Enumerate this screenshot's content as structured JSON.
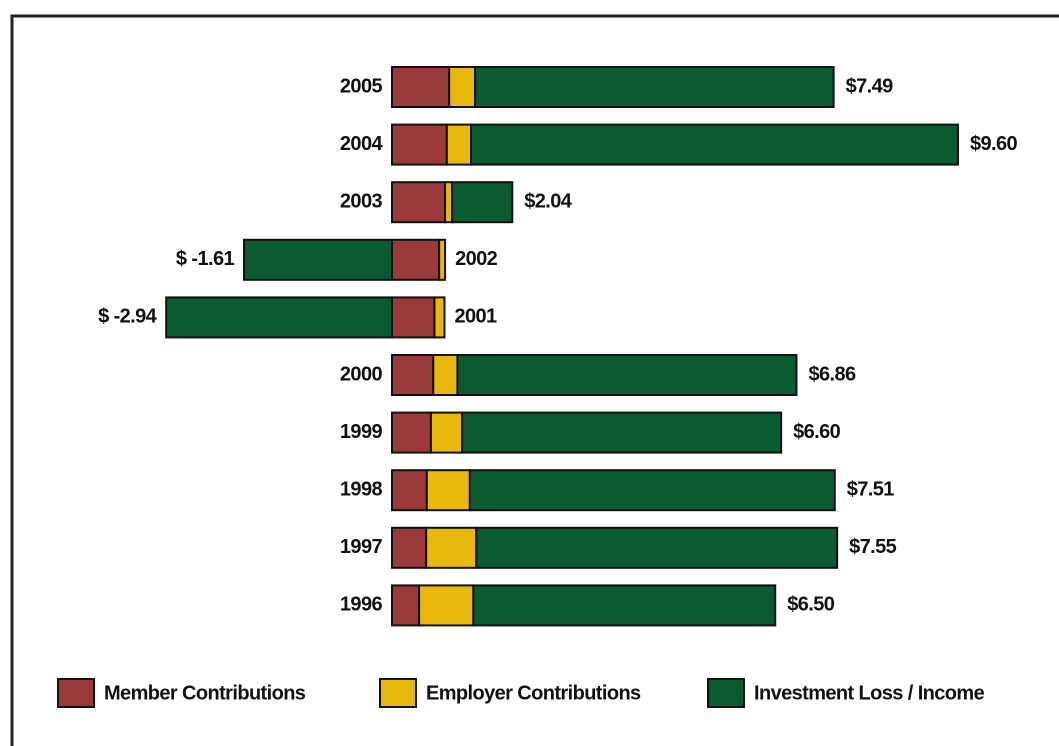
{
  "chart_data": {
    "type": "stacked-bar-horizontal",
    "categories": [
      "2005",
      "2004",
      "2003",
      "2002",
      "2001",
      "2000",
      "1999",
      "1998",
      "1997",
      "1996"
    ],
    "series": [
      {
        "name": "Member Contributions",
        "color": "#9b3a3a",
        "values": [
          0.97,
          0.93,
          0.9,
          0.8,
          0.72,
          0.7,
          0.66,
          0.59,
          0.58,
          0.46
        ]
      },
      {
        "name": "Employer Contributions",
        "color": "#e8b80c",
        "values": [
          0.44,
          0.41,
          0.12,
          0.1,
          0.17,
          0.41,
          0.53,
          0.73,
          0.85,
          0.92
        ]
      },
      {
        "name": "Investment Loss / Income",
        "color": "#0a5a32",
        "values": [
          6.08,
          8.26,
          1.02,
          -2.51,
          -3.83,
          5.75,
          5.41,
          6.19,
          6.12,
          5.12
        ]
      }
    ],
    "totals": [
      7.49,
      9.6,
      2.04,
      -1.61,
      -2.94,
      6.86,
      6.6,
      7.51,
      7.55,
      6.5
    ],
    "total_labels": [
      "$7.49",
      "$9.60",
      "$2.04",
      "$ -1.61",
      "$ -2.94",
      "$6.86",
      "$6.60",
      "$7.51",
      "$7.55",
      "$6.50"
    ],
    "legend": "bottom"
  }
}
